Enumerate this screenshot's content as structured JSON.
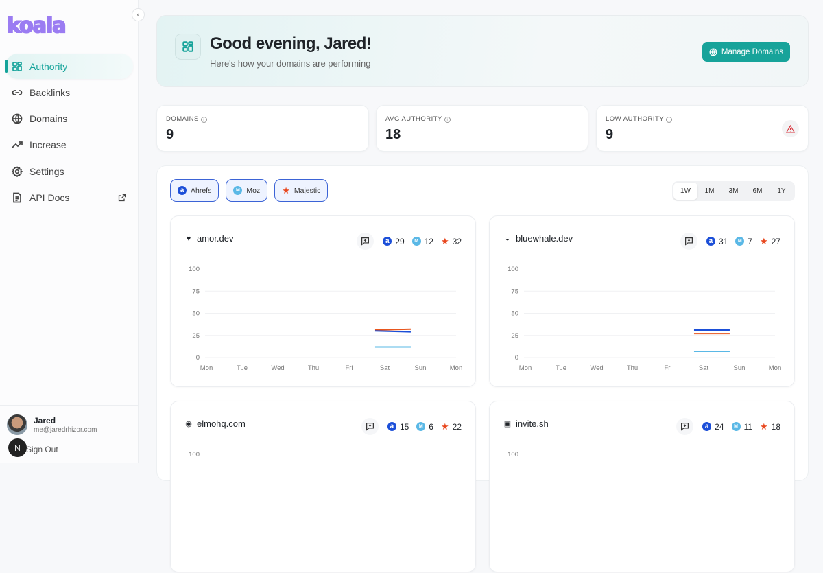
{
  "brand": {
    "logo_text": "koala"
  },
  "sidebar": {
    "items": [
      {
        "label": "Authority",
        "icon": "grid-icon",
        "active": true
      },
      {
        "label": "Backlinks",
        "icon": "link-icon"
      },
      {
        "label": "Domains",
        "icon": "globe-icon"
      },
      {
        "label": "Increase",
        "icon": "trending-up-icon"
      },
      {
        "label": "Settings",
        "icon": "gear-icon"
      },
      {
        "label": "API Docs",
        "icon": "document-icon",
        "external": true
      }
    ]
  },
  "user": {
    "name": "Jared",
    "email": "me@jaredrhizor.com",
    "sign_out": "Sign Out",
    "badge": "N"
  },
  "hero": {
    "title": "Good evening, Jared!",
    "subtitle": "Here's how your domains are performing",
    "manage_label": "Manage Domains"
  },
  "stats": [
    {
      "label": "DOMAINS",
      "value": "9"
    },
    {
      "label": "AVG AUTHORITY",
      "value": "18"
    },
    {
      "label": "LOW AUTHORITY",
      "value": "9"
    }
  ],
  "filters": [
    {
      "label": "Ahrefs"
    },
    {
      "label": "Moz"
    },
    {
      "label": "Majestic"
    }
  ],
  "ranges": [
    {
      "label": "1W",
      "active": true
    },
    {
      "label": "1M"
    },
    {
      "label": "3M"
    },
    {
      "label": "6M"
    },
    {
      "label": "1Y"
    }
  ],
  "colors": {
    "accent": "#17a39a",
    "ahrefs": "#1c4fd8",
    "moz": "#5ab8e6",
    "majestic": "#e8561e"
  },
  "chart_data": [
    {
      "type": "line",
      "title": "amor.dev",
      "favicon": "heart",
      "scores": {
        "ahrefs": "29",
        "moz": "12",
        "majestic": "32"
      },
      "categories": [
        "Mon",
        "Tue",
        "Wed",
        "Thu",
        "Fri",
        "Sat",
        "Sun",
        "Mon"
      ],
      "yticks": [
        "0",
        "25",
        "50",
        "75",
        "100"
      ],
      "ylim": [
        0,
        100
      ],
      "series": [
        {
          "key": "majestic",
          "x": [
            "Sat",
            "Sun"
          ],
          "values": [
            31,
            32
          ]
        },
        {
          "key": "ahrefs",
          "x": [
            "Sat",
            "Sun"
          ],
          "values": [
            30,
            29
          ]
        },
        {
          "key": "moz",
          "x": [
            "Sat",
            "Sun"
          ],
          "values": [
            12,
            12
          ]
        }
      ]
    },
    {
      "type": "line",
      "title": "bluewhale.dev",
      "favicon": "whale",
      "scores": {
        "ahrefs": "31",
        "moz": "7",
        "majestic": "27"
      },
      "categories": [
        "Mon",
        "Tue",
        "Wed",
        "Thu",
        "Fri",
        "Sat",
        "Sun",
        "Mon"
      ],
      "yticks": [
        "0",
        "25",
        "50",
        "75",
        "100"
      ],
      "ylim": [
        0,
        100
      ],
      "series": [
        {
          "key": "ahrefs",
          "x": [
            "Sat",
            "Sun"
          ],
          "values": [
            31,
            31
          ]
        },
        {
          "key": "majestic",
          "x": [
            "Sat",
            "Sun"
          ],
          "values": [
            27,
            27
          ]
        },
        {
          "key": "moz",
          "x": [
            "Sat",
            "Sun"
          ],
          "values": [
            7,
            7
          ]
        }
      ]
    },
    {
      "type": "line",
      "title": "elmohq.com",
      "favicon": "globe",
      "scores": {
        "ahrefs": "15",
        "moz": "6",
        "majestic": "22"
      },
      "yticks": [
        "100"
      ],
      "ylim": [
        0,
        100
      ],
      "categories": [],
      "series": []
    },
    {
      "type": "line",
      "title": "invite.sh",
      "favicon": "calendar",
      "scores": {
        "ahrefs": "24",
        "moz": "11",
        "majestic": "18"
      },
      "yticks": [
        "100"
      ],
      "ylim": [
        0,
        100
      ],
      "categories": [],
      "series": []
    }
  ]
}
